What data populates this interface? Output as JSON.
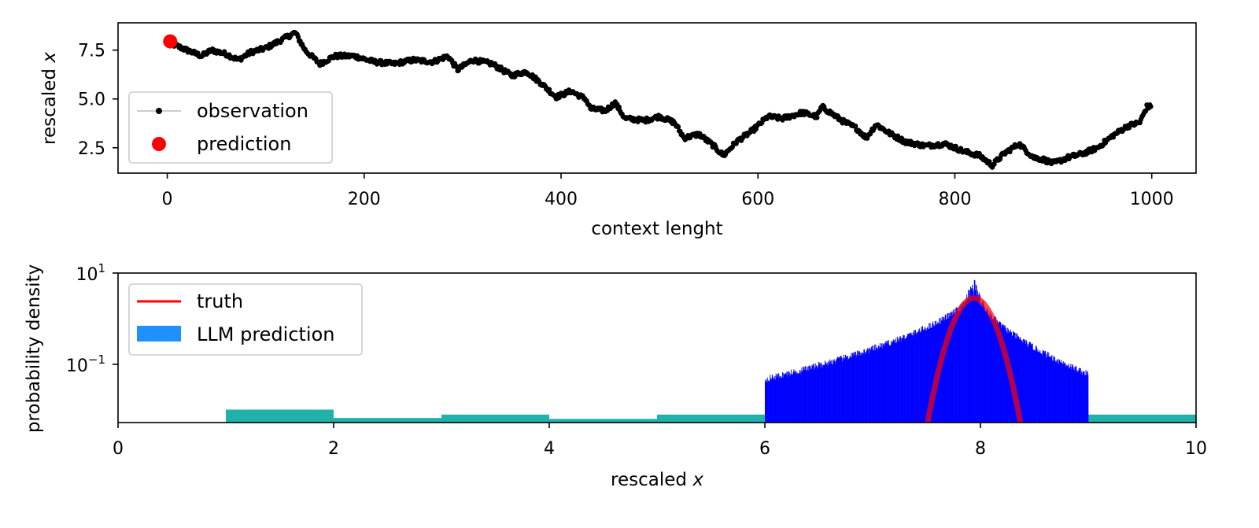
{
  "chart_data": [
    {
      "type": "line",
      "xlabel": "context lenght",
      "ylabel_text": "rescaled ",
      "ylabel_var": "x",
      "xlim": [
        -50,
        1045
      ],
      "ylim": [
        1.2,
        8.9
      ],
      "xticks": [
        0,
        200,
        400,
        600,
        800,
        1000
      ],
      "yticks": [
        2.5,
        5.0,
        7.5
      ],
      "grid": false,
      "legend_position": "lower left",
      "series": [
        {
          "name": "observation",
          "color": "#000000",
          "marker": "dot",
          "x_start": 1,
          "x_end": 999,
          "anchors": [
            [
              1,
              7.9
            ],
            [
              20,
              7.5
            ],
            [
              35,
              7.2
            ],
            [
              45,
              7.5
            ],
            [
              60,
              7.3
            ],
            [
              72,
              7.0
            ],
            [
              85,
              7.4
            ],
            [
              100,
              7.6
            ],
            [
              115,
              8.0
            ],
            [
              130,
              8.4
            ],
            [
              140,
              7.5
            ],
            [
              155,
              6.8
            ],
            [
              170,
              7.2
            ],
            [
              190,
              7.2
            ],
            [
              210,
              6.9
            ],
            [
              230,
              6.8
            ],
            [
              250,
              7.0
            ],
            [
              270,
              6.9
            ],
            [
              285,
              7.2
            ],
            [
              295,
              6.5
            ],
            [
              310,
              7.0
            ],
            [
              330,
              6.8
            ],
            [
              350,
              6.2
            ],
            [
              365,
              6.4
            ],
            [
              380,
              5.8
            ],
            [
              395,
              5.1
            ],
            [
              410,
              5.4
            ],
            [
              425,
              5.0
            ],
            [
              430,
              4.5
            ],
            [
              445,
              4.4
            ],
            [
              455,
              4.8
            ],
            [
              465,
              4.0
            ],
            [
              485,
              3.9
            ],
            [
              500,
              4.1
            ],
            [
              515,
              3.8
            ],
            [
              525,
              3.0
            ],
            [
              540,
              3.2
            ],
            [
              555,
              2.6
            ],
            [
              565,
              2.1
            ],
            [
              578,
              2.8
            ],
            [
              595,
              3.4
            ],
            [
              610,
              4.1
            ],
            [
              625,
              4.0
            ],
            [
              645,
              4.3
            ],
            [
              660,
              4.1
            ],
            [
              665,
              4.6
            ],
            [
              685,
              3.9
            ],
            [
              700,
              3.5
            ],
            [
              710,
              3.0
            ],
            [
              720,
              3.7
            ],
            [
              735,
              3.2
            ],
            [
              750,
              2.8
            ],
            [
              770,
              2.6
            ],
            [
              790,
              2.7
            ],
            [
              810,
              2.3
            ],
            [
              825,
              2.1
            ],
            [
              838,
              1.6
            ],
            [
              850,
              2.2
            ],
            [
              865,
              2.7
            ],
            [
              880,
              2.0
            ],
            [
              890,
              1.9
            ],
            [
              900,
              1.7
            ],
            [
              915,
              2.0
            ],
            [
              930,
              2.2
            ],
            [
              945,
              2.5
            ],
            [
              960,
              3.1
            ],
            [
              975,
              3.6
            ],
            [
              988,
              3.8
            ],
            [
              995,
              4.6
            ],
            [
              999,
              4.6
            ]
          ]
        },
        {
          "name": "prediction",
          "color": "#ff0000",
          "marker": "big-dot",
          "x": [
            3
          ],
          "y": [
            7.95
          ]
        }
      ]
    },
    {
      "type": "histogram",
      "xlabel_text": "rescaled ",
      "xlabel_var": "x",
      "ylabel": "probability density",
      "xlim": [
        0,
        10
      ],
      "ylim_log10": [
        -1.65,
        1
      ],
      "yscale": "log",
      "xticks": [
        0,
        2,
        4,
        6,
        8,
        10
      ],
      "yticks_exp": [
        1,
        -1
      ],
      "ytick_base": "10",
      "ytick_exp_1": "1",
      "ytick_exp_2": "−1",
      "grid": false,
      "legend_position": "upper left",
      "coarse_bins": {
        "color": "#20b2aa",
        "bins": [
          [
            0,
            1,
            0.012
          ],
          [
            1,
            2,
            0.038
          ],
          [
            2,
            3,
            0.027
          ],
          [
            3,
            4,
            0.031
          ],
          [
            4,
            5,
            0.026
          ],
          [
            5,
            6,
            0.031
          ],
          [
            9,
            10,
            0.031
          ]
        ]
      },
      "llm_prediction": {
        "name": "LLM prediction",
        "legend_color": "#1e90ff",
        "fine_color": "#0000ff",
        "range": [
          6,
          9
        ],
        "peak_x": 7.95,
        "peak_density": 6.0
      },
      "truth": {
        "name": "truth",
        "color": "#ff0000",
        "mean": 7.94,
        "peak_density": 3.6,
        "curve_x_range": [
          7.5,
          8.38
        ]
      }
    }
  ]
}
